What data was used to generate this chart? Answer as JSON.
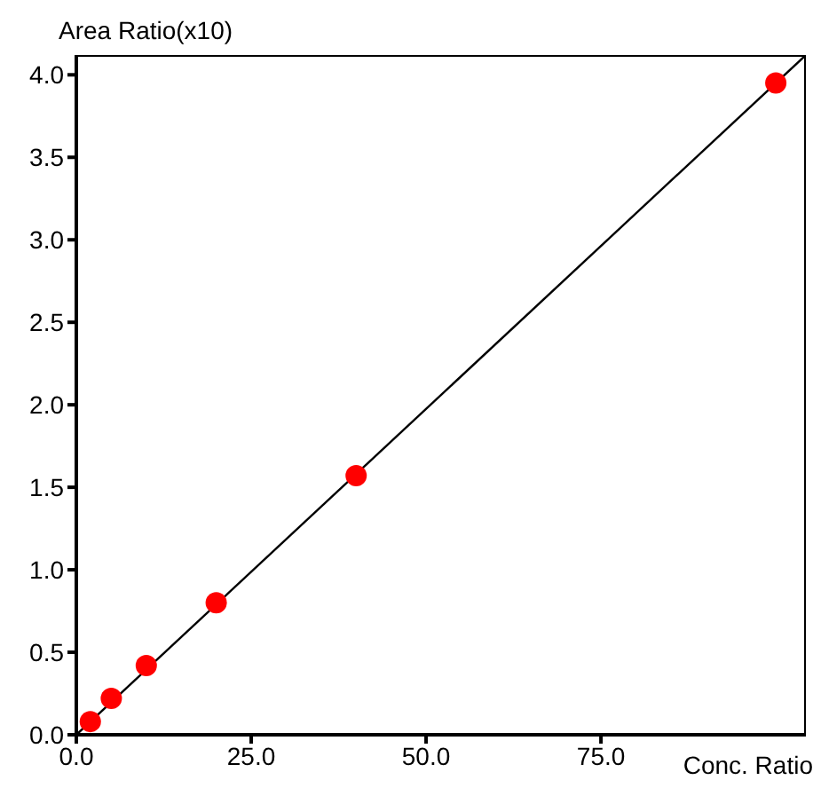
{
  "chart_data": {
    "type": "scatter",
    "xlabel": "Conc. Ratio",
    "ylabel": "Area Ratio(x10)",
    "xlim": [
      0,
      104.3
    ],
    "xticks": [
      {
        "value": 0,
        "label": "0.0"
      },
      {
        "value": 25,
        "label": "25.0"
      },
      {
        "value": 50,
        "label": "50.0"
      },
      {
        "value": 75,
        "label": "75.0"
      }
    ],
    "ylim": [
      0,
      4.12
    ],
    "yticks": [
      {
        "value": 0,
        "label": "0.0"
      },
      {
        "value": 0.5,
        "label": "0.5"
      },
      {
        "value": 1,
        "label": "1.0"
      },
      {
        "value": 1.5,
        "label": "1.5"
      },
      {
        "value": 2,
        "label": "2.0"
      },
      {
        "value": 2.5,
        "label": "2.5"
      },
      {
        "value": 3,
        "label": "3.0"
      },
      {
        "value": 3.5,
        "label": "3.5"
      },
      {
        "value": 4,
        "label": "4.0"
      }
    ],
    "grid": false,
    "series": [
      {
        "type": "line",
        "color": "#000000",
        "marker": "none",
        "x": [
          0,
          104.3
        ],
        "values": [
          0,
          4.12
        ]
      },
      {
        "color": "#ff0000",
        "marker": "circle",
        "x": [
          2,
          5,
          10,
          20,
          40,
          100
        ],
        "values": [
          0.08,
          0.22,
          0.42,
          0.8,
          1.57,
          3.95
        ]
      }
    ]
  }
}
